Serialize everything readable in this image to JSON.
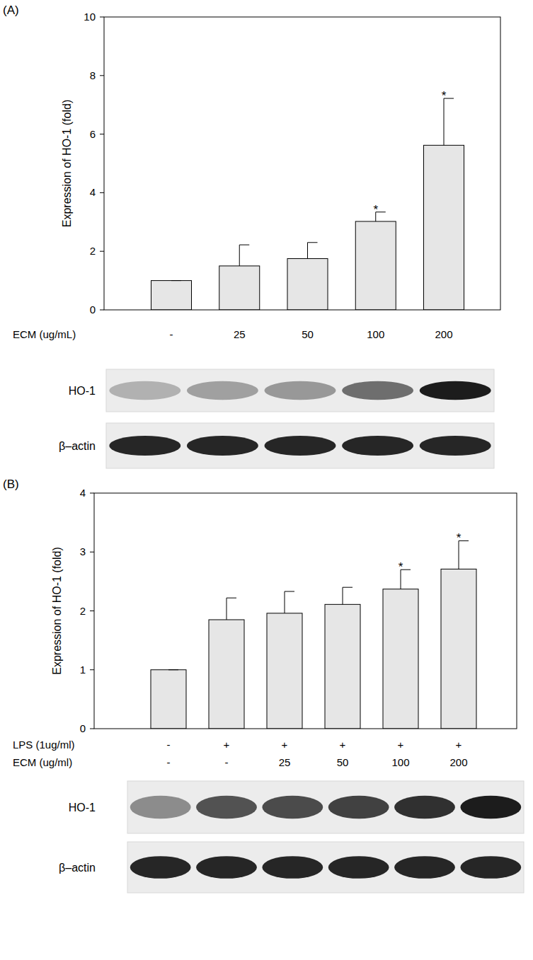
{
  "chart_data": [
    {
      "type": "bar",
      "panel": "(A)",
      "y_label": "Expression of HO-1 (fold)",
      "category_label": "ECM (ug/mL)",
      "categories": [
        "-",
        "25",
        "50",
        "100",
        "200"
      ],
      "values": [
        1,
        1.5,
        1.75,
        3.02,
        5.62
      ],
      "errors": [
        0,
        0.72,
        0.55,
        0.32,
        1.6
      ],
      "annotations": [
        {
          "index": 3,
          "text": "*"
        },
        {
          "index": 4,
          "text": "*"
        }
      ],
      "color": "#e6e6e6",
      "ylim": [
        0,
        10
      ],
      "yticks": [
        0,
        2,
        4,
        6,
        8,
        10
      ],
      "grid": false,
      "blots": [
        "HO-1",
        "β–actin"
      ]
    },
    {
      "type": "bar",
      "panel": "(B)",
      "y_label": "Expression of HO-1 (fold)",
      "category_rows": [
        {
          "label": "LPS (1ug/ml)",
          "labels": [
            "-",
            "+",
            "+",
            "+",
            "+",
            "+"
          ]
        }
      ],
      "category_label": "ECM (ug/ml)",
      "categories": [
        "-",
        "-",
        "25",
        "50",
        "100",
        "200"
      ],
      "values": [
        1,
        1.85,
        1.96,
        2.11,
        2.37,
        2.71
      ],
      "errors": [
        0,
        0.37,
        0.37,
        0.29,
        0.33,
        0.48
      ],
      "annotations": [
        {
          "index": 4,
          "text": "*"
        },
        {
          "index": 5,
          "text": "*"
        }
      ],
      "color": "#e6e6e6",
      "ylim": [
        0,
        4
      ],
      "yticks": [
        0,
        1,
        2,
        3,
        4
      ],
      "grid": false,
      "blots": [
        "HO-1",
        "β–actin"
      ]
    }
  ]
}
